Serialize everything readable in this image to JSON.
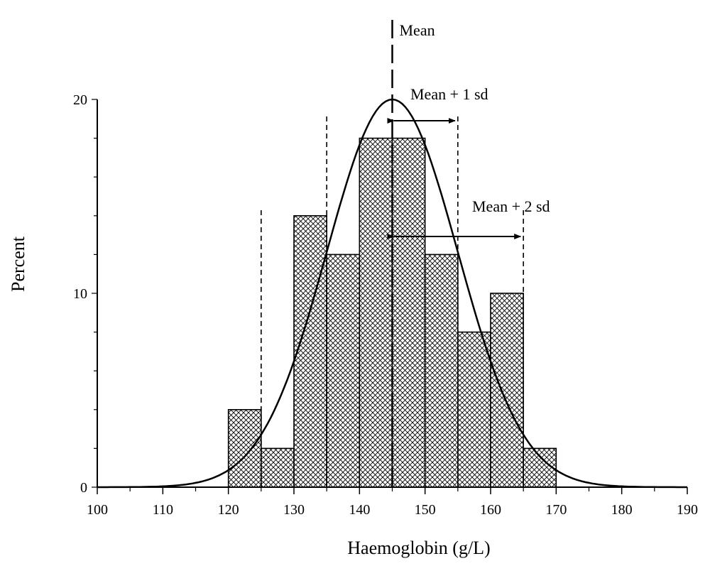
{
  "chart_data": {
    "type": "bar",
    "xlabel": "Haemoglobin (g/L)",
    "ylabel": "Percent",
    "xlim": [
      100,
      190
    ],
    "ylim": [
      0,
      20
    ],
    "x_ticks": [
      "100",
      "110",
      "120",
      "130",
      "140",
      "150",
      "160",
      "170",
      "180",
      "190"
    ],
    "y_ticks": [
      "0",
      "10",
      "20"
    ],
    "bins": [
      {
        "start": 120,
        "end": 125,
        "value": 4
      },
      {
        "start": 125,
        "end": 130,
        "value": 2
      },
      {
        "start": 130,
        "end": 135,
        "value": 14
      },
      {
        "start": 135,
        "end": 140,
        "value": 12
      },
      {
        "start": 140,
        "end": 145,
        "value": 18
      },
      {
        "start": 145,
        "end": 150,
        "value": 18
      },
      {
        "start": 150,
        "end": 155,
        "value": 12
      },
      {
        "start": 155,
        "end": 160,
        "value": 8
      },
      {
        "start": 160,
        "end": 165,
        "value": 10
      },
      {
        "start": 165,
        "end": 170,
        "value": 2
      }
    ],
    "normal_curve": {
      "mean": 145,
      "sd": 10
    },
    "reference_lines": [
      125,
      135,
      145,
      155,
      165
    ],
    "annotations": {
      "mean": "Mean",
      "plus_one_sd": "Mean + 1 sd",
      "plus_two_sd": "Mean + 2 sd"
    }
  }
}
